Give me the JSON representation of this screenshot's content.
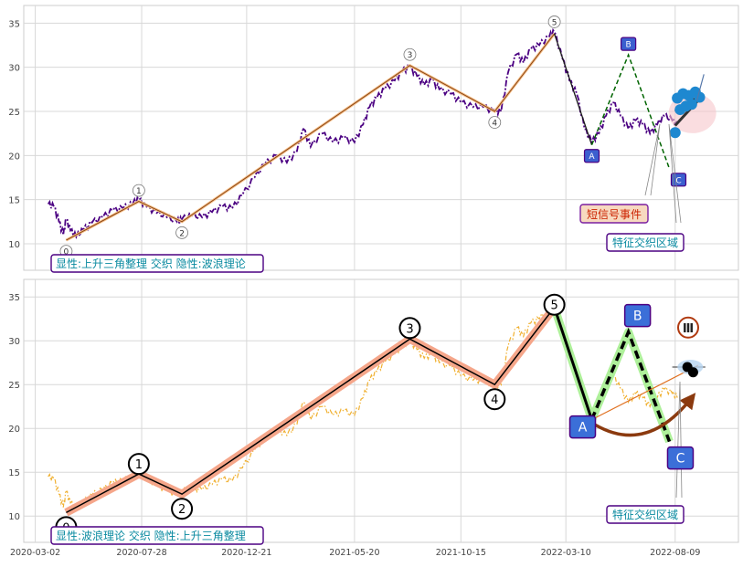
{
  "chart_data": [
    {
      "type": "line",
      "panel": "top",
      "title": "",
      "xlabel": "",
      "ylabel": "",
      "ylim": [
        7,
        37
      ],
      "yticks": [
        10,
        15,
        20,
        25,
        30,
        35
      ],
      "grid": true,
      "series": [
        {
          "role": "price",
          "color": "#4b0082",
          "style": "dashdot",
          "points": [
            [
              "2020-03-20",
              14.5
            ],
            [
              "2020-03-28",
              14.2
            ],
            [
              "2020-04-04",
              12.5
            ],
            [
              "2020-04-10",
              11.0
            ],
            [
              "2020-04-14",
              12.8
            ],
            [
              "2020-04-20",
              11.5
            ],
            [
              "2020-04-28",
              10.8
            ],
            [
              "2020-05-08",
              11.6
            ],
            [
              "2020-05-20",
              12.4
            ],
            [
              "2020-06-04",
              13.0
            ],
            [
              "2020-06-18",
              13.8
            ],
            [
              "2020-07-02",
              14.0
            ],
            [
              "2020-07-16",
              14.6
            ],
            [
              "2020-07-24",
              15.0
            ],
            [
              "2020-08-04",
              14.2
            ],
            [
              "2020-08-18",
              13.5
            ],
            [
              "2020-09-01",
              13.0
            ],
            [
              "2020-09-15",
              12.5
            ],
            [
              "2020-09-22",
              12.8
            ],
            [
              "2020-10-06",
              13.2
            ],
            [
              "2020-10-20",
              13.0
            ],
            [
              "2020-11-03",
              13.6
            ],
            [
              "2020-11-17",
              14.2
            ],
            [
              "2020-12-01",
              14.0
            ],
            [
              "2020-12-15",
              15.5
            ],
            [
              "2021-01-01",
              17.5
            ],
            [
              "2021-01-15",
              19.0
            ],
            [
              "2021-02-01",
              20.0
            ],
            [
              "2021-02-15",
              19.2
            ],
            [
              "2021-03-01",
              20.5
            ],
            [
              "2021-03-10",
              23.0
            ],
            [
              "2021-03-20",
              21.0
            ],
            [
              "2021-04-05",
              22.5
            ],
            [
              "2021-04-20",
              21.5
            ],
            [
              "2021-05-05",
              22.0
            ],
            [
              "2021-05-20",
              21.5
            ],
            [
              "2021-06-01",
              23.5
            ],
            [
              "2021-06-10",
              25.5
            ],
            [
              "2021-06-20",
              26.5
            ],
            [
              "2021-07-01",
              27.5
            ],
            [
              "2021-07-15",
              28.5
            ],
            [
              "2021-07-25",
              29.5
            ],
            [
              "2021-08-05",
              30.0
            ],
            [
              "2021-08-15",
              29.0
            ],
            [
              "2021-08-25",
              28.0
            ],
            [
              "2021-09-05",
              28.5
            ],
            [
              "2021-09-15",
              27.5
            ],
            [
              "2021-10-01",
              27.0
            ],
            [
              "2021-10-15",
              26.0
            ],
            [
              "2021-11-01",
              25.5
            ],
            [
              "2021-11-15",
              25.5
            ],
            [
              "2021-12-01",
              25.0
            ],
            [
              "2021-12-10",
              25.0
            ],
            [
              "2021-12-20",
              29.5
            ],
            [
              "2022-01-01",
              31.5
            ],
            [
              "2022-01-10",
              30.5
            ],
            [
              "2022-01-20",
              32.0
            ],
            [
              "2022-02-01",
              32.5
            ],
            [
              "2022-02-15",
              33.5
            ],
            [
              "2022-02-22",
              34.0
            ],
            [
              "2022-03-05",
              31.0
            ],
            [
              "2022-03-15",
              28.5
            ],
            [
              "2022-03-25",
              27.0
            ],
            [
              "2022-04-05",
              23.0
            ],
            [
              "2022-04-15",
              21.5
            ],
            [
              "2022-04-25",
              22.5
            ],
            [
              "2022-05-05",
              24.5
            ],
            [
              "2022-05-15",
              26.0
            ],
            [
              "2022-05-25",
              24.5
            ],
            [
              "2022-06-05",
              23.0
            ],
            [
              "2022-06-15",
              24.0
            ],
            [
              "2022-06-25",
              23.5
            ],
            [
              "2022-07-05",
              22.5
            ],
            [
              "2022-07-15",
              23.5
            ],
            [
              "2022-07-25",
              24.5
            ],
            [
              "2022-08-05",
              24.0
            ],
            [
              "2022-08-12",
              23.5
            ]
          ]
        }
      ],
      "waves": {
        "labels": [
          "0",
          "1",
          "2",
          "3",
          "4",
          "5"
        ],
        "dates": [
          "2020-04-14",
          "2020-07-24",
          "2020-09-22",
          "2021-08-05",
          "2021-12-01",
          "2022-02-22"
        ],
        "values": [
          10.4,
          14.8,
          12.5,
          30.2,
          25.0,
          33.8
        ],
        "color": "#8b4513"
      },
      "abc": {
        "labels": [
          "A",
          "B",
          "C"
        ],
        "dates": [
          "2022-04-15",
          "2022-06-05",
          "2022-08-01"
        ],
        "values": [
          21.2,
          31.4,
          18.5
        ],
        "color_a": "#1a1a1a",
        "color_bc": "#006400"
      },
      "triangle_markers": {
        "color": "#1e88d0",
        "points": [
          [
            "2022-08-09",
            22.6
          ],
          [
            "2022-08-12",
            26.5
          ],
          [
            "2022-08-16",
            25.2
          ],
          [
            "2022-08-20",
            27.0
          ],
          [
            "2022-08-24",
            25.6
          ],
          [
            "2022-08-28",
            26.8
          ],
          [
            "2022-09-01",
            25.8
          ],
          [
            "2022-09-06",
            27.2
          ],
          [
            "2022-09-12",
            26.6
          ]
        ]
      },
      "annotations": [
        {
          "text": "短信号事件",
          "color": "#cc2200"
        },
        {
          "text": "特征交织区域",
          "color": "#0a8aa0"
        },
        {
          "text": "显性:上升三角整理 交织 隐性:波浪理论",
          "color": "#0a8aa0"
        }
      ]
    },
    {
      "type": "line",
      "panel": "bottom",
      "title": "",
      "xlabel": "",
      "ylabel": "",
      "ylim": [
        7,
        37
      ],
      "yticks": [
        10,
        15,
        20,
        25,
        30,
        35
      ],
      "grid": true,
      "series": [
        {
          "role": "price",
          "color": "#f0b030",
          "style": "dashdot",
          "same_as": "top"
        }
      ],
      "waves": {
        "labels": [
          "0",
          "1",
          "2",
          "3",
          "4",
          "5"
        ],
        "dates": [
          "2020-04-14",
          "2020-07-24",
          "2020-09-22",
          "2021-08-05",
          "2021-12-01",
          "2022-02-22"
        ],
        "values": [
          10.4,
          14.8,
          12.5,
          30.2,
          25.0,
          33.8
        ],
        "color": "#000000",
        "halo": "#f5a68a"
      },
      "abc": {
        "labels": [
          "A",
          "B",
          "C"
        ],
        "dates": [
          "2022-04-15",
          "2022-06-05",
          "2022-08-01"
        ],
        "values": [
          21.0,
          31.0,
          18.5
        ],
        "color": "#000000",
        "halo": "#aef09a"
      },
      "roman_badge": "Ⅲ",
      "annotations": [
        {
          "text": "特征交织区域",
          "color": "#0a8aa0"
        },
        {
          "text": "显性:波浪理论 交织 隐性:上升三角整理",
          "color": "#0a8aa0"
        }
      ]
    }
  ],
  "x_axis": {
    "ticks": [
      "2020-03-02",
      "2020-07-28",
      "2020-12-21",
      "2021-05-20",
      "2021-10-15",
      "2022-03-10",
      "2022-08-09"
    ],
    "range": [
      "2020-02-15",
      "2022-11-05"
    ]
  }
}
